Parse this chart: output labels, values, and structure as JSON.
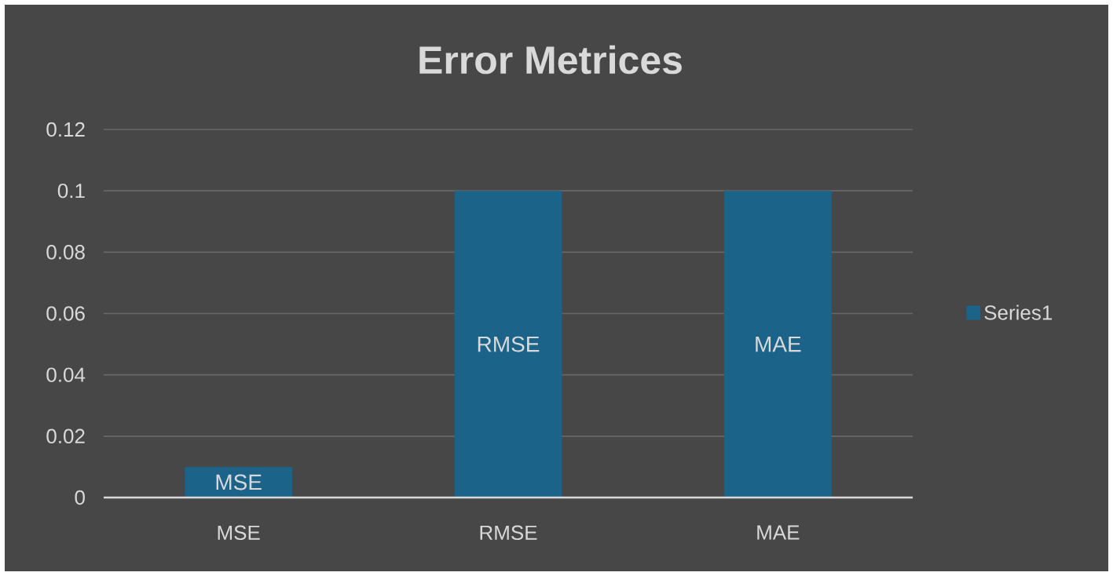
{
  "chart_data": {
    "type": "bar",
    "title": "Error Metrices",
    "categories": [
      "MSE",
      "RMSE",
      "MAE"
    ],
    "series": [
      {
        "name": "Series1",
        "color": "#1b6389",
        "values": [
          0.01,
          0.1,
          0.1
        ],
        "value_labels": [
          "MSE",
          "RMSE",
          "MAE"
        ]
      }
    ],
    "ylim": [
      0,
      0.12
    ],
    "yticks": [
      0,
      0.02,
      0.04,
      0.06,
      0.08,
      0.1,
      0.12
    ],
    "grid": "y",
    "legend": "right"
  }
}
